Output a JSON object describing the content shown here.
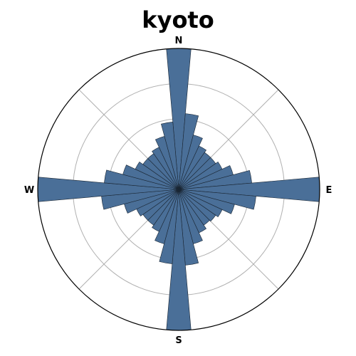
{
  "chart_data": {
    "type": "bar",
    "subtype": "polar-rose",
    "title": "kyoto",
    "direction_labels": [
      "N",
      "E",
      "S",
      "W"
    ],
    "sectors": 36,
    "sector_width_deg": 10,
    "angles_deg": [
      0,
      10,
      20,
      30,
      40,
      50,
      60,
      70,
      80,
      90,
      100,
      110,
      120,
      130,
      140,
      150,
      160,
      170,
      180,
      190,
      200,
      210,
      220,
      230,
      240,
      250,
      260,
      270,
      280,
      290,
      300,
      310,
      320,
      330,
      340,
      350
    ],
    "values": [
      1.0,
      0.54,
      0.4,
      0.34,
      0.32,
      0.32,
      0.34,
      0.4,
      0.52,
      1.0,
      0.55,
      0.41,
      0.34,
      0.32,
      0.31,
      0.34,
      0.4,
      0.54,
      1.0,
      0.53,
      0.4,
      0.33,
      0.31,
      0.31,
      0.33,
      0.4,
      0.55,
      1.0,
      0.53,
      0.41,
      0.34,
      0.31,
      0.31,
      0.33,
      0.39,
      0.48
    ],
    "rmax": 1.0,
    "ring_values": [
      0.25,
      0.5,
      0.75,
      1.0
    ],
    "spoke_angles_deg": [
      0,
      45,
      90,
      135,
      180,
      225,
      270,
      315
    ],
    "theta_zero": "north",
    "theta_direction": "clockwise",
    "grid": true,
    "radial_tick_labels_shown": false,
    "bar_color": "#4a6f98",
    "edge_color": "#1a2633",
    "grid_color": "#b0b0b0"
  }
}
